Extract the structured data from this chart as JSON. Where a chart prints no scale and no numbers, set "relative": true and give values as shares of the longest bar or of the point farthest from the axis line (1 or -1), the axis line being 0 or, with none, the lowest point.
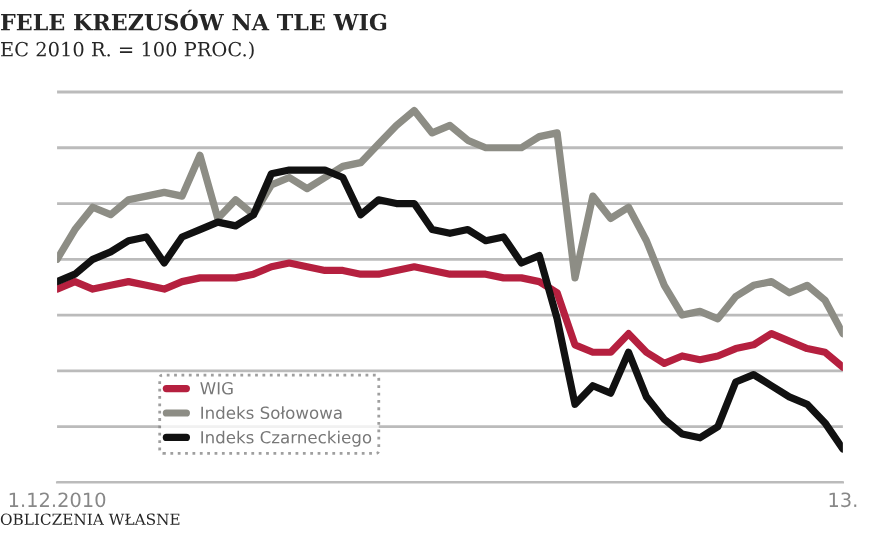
{
  "chart_data": {
    "type": "line",
    "relative": true,
    "title": "FELE KREZUSÓW NA TLE WIG",
    "subtitle": "EC 2010 R. = 100 PROC.)",
    "annotations": [
      "OBLICZENIA WŁASNE"
    ],
    "categories": [
      "1.12.2010",
      null,
      null,
      null,
      null,
      null,
      null,
      null,
      null,
      null,
      null,
      null,
      null,
      null,
      null,
      null,
      null,
      null,
      null,
      null,
      null,
      null,
      null,
      null,
      null,
      null,
      null,
      null,
      null,
      null,
      null,
      null,
      null,
      null,
      null,
      null,
      null,
      null,
      null,
      null,
      null,
      null,
      null,
      null,
      "13."
    ],
    "grid": "y",
    "legend": "bottom left",
    "marker": "none",
    "line_style": "solid",
    "series": [
      {
        "name": "WIG",
        "color": "#b5203f",
        "values": [
          0.52,
          0.54,
          0.52,
          0.53,
          0.54,
          0.53,
          0.52,
          0.54,
          0.55,
          0.55,
          0.55,
          0.56,
          0.58,
          0.59,
          0.58,
          0.57,
          0.57,
          0.56,
          0.56,
          0.57,
          0.58,
          0.57,
          0.56,
          0.56,
          0.56,
          0.55,
          0.55,
          0.54,
          0.51,
          0.37,
          0.35,
          0.35,
          0.4,
          0.35,
          0.32,
          0.34,
          0.33,
          0.34,
          0.36,
          0.37,
          0.4,
          0.38,
          0.36,
          0.35,
          0.31
        ]
      },
      {
        "name": "Indeks Sołowowa",
        "color": "#8d8d85",
        "values": [
          0.6,
          0.68,
          0.74,
          0.72,
          0.76,
          0.77,
          0.78,
          0.77,
          0.88,
          0.71,
          0.76,
          0.72,
          0.8,
          0.82,
          0.79,
          0.82,
          0.85,
          0.86,
          0.91,
          0.96,
          1.0,
          0.94,
          0.96,
          0.92,
          0.9,
          0.9,
          0.9,
          0.93,
          0.94,
          0.55,
          0.77,
          0.71,
          0.74,
          0.65,
          0.53,
          0.45,
          0.46,
          0.44,
          0.5,
          0.53,
          0.54,
          0.51,
          0.53,
          0.49,
          0.4
        ]
      },
      {
        "name": "Indeks Czarneckiego",
        "color": "#111111",
        "values": [
          0.54,
          0.56,
          0.6,
          0.62,
          0.65,
          0.66,
          0.59,
          0.66,
          0.68,
          0.7,
          0.69,
          0.72,
          0.83,
          0.84,
          0.84,
          0.84,
          0.82,
          0.72,
          0.76,
          0.75,
          0.75,
          0.68,
          0.67,
          0.68,
          0.65,
          0.66,
          0.59,
          0.61,
          0.44,
          0.21,
          0.26,
          0.24,
          0.35,
          0.23,
          0.17,
          0.13,
          0.12,
          0.15,
          0.27,
          0.29,
          0.26,
          0.23,
          0.21,
          0.16,
          0.09
        ]
      }
    ]
  }
}
